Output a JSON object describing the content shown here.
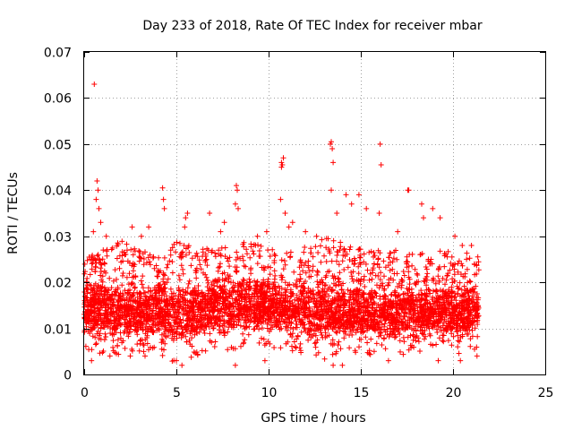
{
  "chart_data": {
    "type": "scatter",
    "title": "Day 233 of 2018, Rate Of TEC Index for receiver mbar",
    "xlabel": "GPS time / hours",
    "ylabel": "ROTI / TECUs",
    "xlim": [
      0,
      25
    ],
    "ylim": [
      0,
      0.07
    ],
    "xticks": [
      "0",
      "5",
      "10",
      "15",
      "20",
      "25"
    ],
    "yticks": [
      "0",
      "0.01",
      "0.02",
      "0.03",
      "0.04",
      "0.05",
      "0.06",
      "0.07"
    ],
    "grid": true,
    "marker": "plus",
    "color": "#ff0000",
    "bands": [
      [
        0.0,
        0.009,
        0.018,
        0.025
      ],
      [
        1.0,
        0.008,
        0.018,
        0.027
      ],
      [
        2.0,
        0.008,
        0.017,
        0.029
      ],
      [
        3.0,
        0.008,
        0.017,
        0.027
      ],
      [
        4.0,
        0.008,
        0.018,
        0.026
      ],
      [
        5.0,
        0.006,
        0.017,
        0.029
      ],
      [
        6.0,
        0.008,
        0.017,
        0.028
      ],
      [
        7.0,
        0.009,
        0.019,
        0.027
      ],
      [
        8.0,
        0.009,
        0.019,
        0.028
      ],
      [
        9.0,
        0.01,
        0.019,
        0.029
      ],
      [
        10.0,
        0.01,
        0.019,
        0.028
      ],
      [
        11.0,
        0.009,
        0.018,
        0.027
      ],
      [
        12.0,
        0.008,
        0.019,
        0.028
      ],
      [
        13.0,
        0.007,
        0.018,
        0.03
      ],
      [
        14.0,
        0.008,
        0.018,
        0.029
      ],
      [
        15.0,
        0.008,
        0.017,
        0.028
      ],
      [
        16.0,
        0.008,
        0.017,
        0.027
      ],
      [
        17.0,
        0.008,
        0.017,
        0.027
      ],
      [
        18.0,
        0.009,
        0.017,
        0.026
      ],
      [
        19.0,
        0.009,
        0.017,
        0.027
      ],
      [
        20.0,
        0.008,
        0.017,
        0.027
      ],
      [
        21.4,
        0.008,
        0.018,
        0.026
      ]
    ],
    "outliers": [
      [
        0.55,
        0.063
      ],
      [
        0.7,
        0.042
      ],
      [
        0.75,
        0.04
      ],
      [
        0.65,
        0.038
      ],
      [
        0.8,
        0.036
      ],
      [
        0.5,
        0.031
      ],
      [
        0.9,
        0.033
      ],
      [
        1.2,
        0.03
      ],
      [
        2.6,
        0.032
      ],
      [
        3.5,
        0.032
      ],
      [
        3.1,
        0.03
      ],
      [
        4.25,
        0.0405
      ],
      [
        4.3,
        0.038
      ],
      [
        4.35,
        0.036
      ],
      [
        5.6,
        0.035
      ],
      [
        5.5,
        0.034
      ],
      [
        5.45,
        0.032
      ],
      [
        6.8,
        0.035
      ],
      [
        7.4,
        0.031
      ],
      [
        7.6,
        0.033
      ],
      [
        8.25,
        0.041
      ],
      [
        8.3,
        0.04
      ],
      [
        8.2,
        0.037
      ],
      [
        8.35,
        0.036
      ],
      [
        9.4,
        0.03
      ],
      [
        9.9,
        0.031
      ],
      [
        10.7,
        0.046
      ],
      [
        10.75,
        0.0455
      ],
      [
        10.8,
        0.047
      ],
      [
        10.7,
        0.045
      ],
      [
        10.65,
        0.038
      ],
      [
        10.9,
        0.035
      ],
      [
        11.1,
        0.032
      ],
      [
        11.3,
        0.033
      ],
      [
        12.0,
        0.031
      ],
      [
        12.6,
        0.03
      ],
      [
        13.35,
        0.05
      ],
      [
        13.4,
        0.0505
      ],
      [
        13.45,
        0.049
      ],
      [
        13.5,
        0.046
      ],
      [
        13.4,
        0.04
      ],
      [
        13.7,
        0.035
      ],
      [
        14.2,
        0.039
      ],
      [
        14.5,
        0.037
      ],
      [
        14.9,
        0.039
      ],
      [
        15.3,
        0.036
      ],
      [
        16.05,
        0.05
      ],
      [
        16.1,
        0.0455
      ],
      [
        16.0,
        0.035
      ],
      [
        17.0,
        0.031
      ],
      [
        17.55,
        0.04
      ],
      [
        17.6,
        0.04
      ],
      [
        18.3,
        0.037
      ],
      [
        18.4,
        0.034
      ],
      [
        18.9,
        0.036
      ],
      [
        19.3,
        0.034
      ],
      [
        20.1,
        0.03
      ],
      [
        20.5,
        0.028
      ],
      [
        21.0,
        0.028
      ]
    ],
    "lows": [
      [
        0.4,
        0.003
      ],
      [
        1.4,
        0.004
      ],
      [
        2.5,
        0.004
      ],
      [
        3.3,
        0.004
      ],
      [
        5.0,
        0.003
      ],
      [
        5.3,
        0.002
      ],
      [
        8.2,
        0.002
      ],
      [
        9.8,
        0.003
      ],
      [
        13.5,
        0.002
      ],
      [
        14.0,
        0.002
      ],
      [
        16.5,
        0.003
      ],
      [
        19.2,
        0.003
      ],
      [
        20.4,
        0.003
      ],
      [
        21.3,
        0.004
      ]
    ]
  }
}
